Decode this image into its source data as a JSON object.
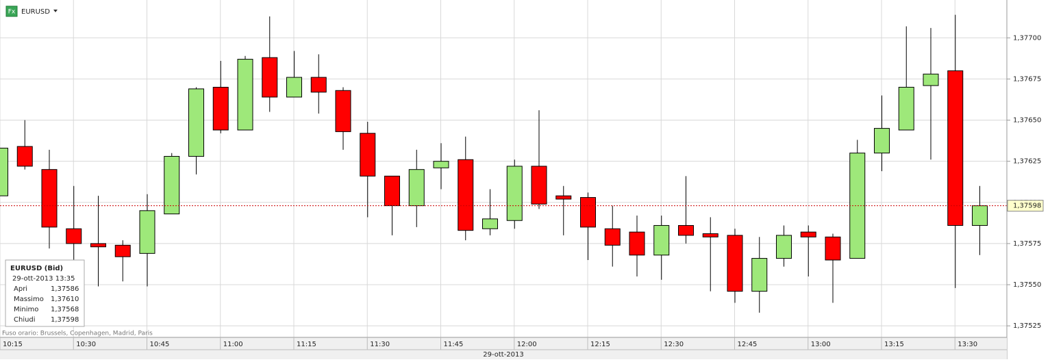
{
  "header": {
    "icon": "Fx",
    "symbol": "EURUSD"
  },
  "chart_data": {
    "type": "candlestick",
    "categories": [
      "10:15",
      null,
      null,
      "10:30",
      null,
      null,
      "10:45",
      null,
      null,
      "11:00",
      null,
      null,
      "11:15",
      null,
      null,
      "11:30",
      null,
      null,
      "11:45",
      null,
      null,
      "12:00",
      null,
      null,
      "12:15",
      null,
      null,
      "12:30",
      null,
      null,
      "12:45",
      null,
      null,
      "13:00",
      null,
      null,
      "13:15",
      null,
      null,
      "13:30",
      null
    ],
    "open": [
      1.37604,
      1.37634,
      1.3762,
      1.37584,
      1.37575,
      1.37574,
      1.37569,
      1.37593,
      1.37628,
      1.3767,
      1.37644,
      1.37688,
      1.37664,
      1.37676,
      1.37668,
      1.37642,
      1.37616,
      1.37598,
      1.37621,
      1.37626,
      1.37584,
      1.37589,
      1.37622,
      1.37604,
      1.37603,
      1.37584,
      1.37582,
      1.37568,
      1.37586,
      1.37581,
      1.3758,
      1.37546,
      1.37566,
      1.37582,
      1.37579,
      1.37566,
      1.3763,
      1.37644,
      1.37671,
      1.3768,
      1.37586
    ],
    "high": [
      1.37633,
      1.3765,
      1.37632,
      1.3761,
      1.37604,
      1.37577,
      1.37605,
      1.3763,
      1.3767,
      1.37686,
      1.37689,
      1.37713,
      1.37692,
      1.3769,
      1.3767,
      1.37649,
      1.37616,
      1.37632,
      1.37636,
      1.3764,
      1.37608,
      1.37626,
      1.37656,
      1.3761,
      1.37606,
      1.37598,
      1.37592,
      1.37592,
      1.37616,
      1.37591,
      1.37584,
      1.37579,
      1.37586,
      1.37586,
      1.37581,
      1.37638,
      1.37665,
      1.37707,
      1.37706,
      1.37714,
      1.3761
    ],
    "low": [
      1.37604,
      1.3762,
      1.37572,
      1.37565,
      1.37549,
      1.37552,
      1.37549,
      1.37593,
      1.37617,
      1.37642,
      1.37644,
      1.37655,
      1.37664,
      1.37654,
      1.37632,
      1.37591,
      1.3758,
      1.37585,
      1.37608,
      1.37577,
      1.3758,
      1.37584,
      1.37596,
      1.3758,
      1.37565,
      1.37561,
      1.37555,
      1.37553,
      1.37575,
      1.37546,
      1.37539,
      1.37533,
      1.37561,
      1.37555,
      1.37539,
      1.37566,
      1.37619,
      1.37644,
      1.37626,
      1.37548,
      1.37568
    ],
    "close": [
      1.37633,
      1.37622,
      1.37585,
      1.37575,
      1.37573,
      1.37567,
      1.37595,
      1.37628,
      1.37669,
      1.37644,
      1.37687,
      1.37664,
      1.37676,
      1.37667,
      1.37643,
      1.37616,
      1.37598,
      1.3762,
      1.37625,
      1.37583,
      1.3759,
      1.37622,
      1.37599,
      1.37602,
      1.37585,
      1.37574,
      1.37568,
      1.37586,
      1.3758,
      1.37579,
      1.37546,
      1.37566,
      1.3758,
      1.37579,
      1.37565,
      1.3763,
      1.37645,
      1.3767,
      1.37678,
      1.37586,
      1.37598
    ],
    "up_color": "#9ee87a",
    "down_color": "#ff0000",
    "ylim": [
      1.37518,
      1.37723
    ],
    "yticks": [
      {
        "value": 1.37525,
        "label": "1,37525"
      },
      {
        "value": 1.3755,
        "label": "1,37550"
      },
      {
        "value": 1.37575,
        "label": "1,37575"
      },
      {
        "value": 1.376,
        "label": "1,37600"
      },
      {
        "value": 1.37625,
        "label": "1,37625"
      },
      {
        "value": 1.3765,
        "label": "1,37650"
      },
      {
        "value": 1.37675,
        "label": "1,37675"
      },
      {
        "value": 1.377,
        "label": "1,37700"
      }
    ],
    "last_price": {
      "value": 1.37598,
      "label": "1,37598"
    },
    "grid": true,
    "timezone_note": "Fuso orario: Brussels, Copenhagen, Madrid, Paris",
    "date_label": "29-ott-2013"
  },
  "tooltip": {
    "title": "EURUSD (Bid)",
    "datetime": "29-ott-2013 13:35",
    "rows": [
      [
        "Apri",
        "1,37586"
      ],
      [
        "Massimo",
        "1,37610"
      ],
      [
        "Minimo",
        "1,37568"
      ],
      [
        "Chiudi",
        "1,37598"
      ]
    ]
  }
}
